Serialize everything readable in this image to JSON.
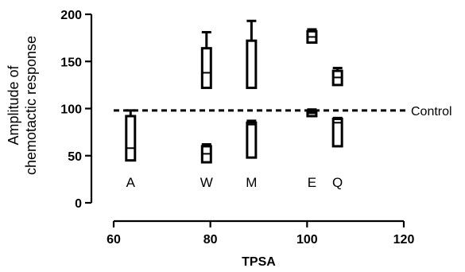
{
  "chart_data": {
    "type": "box",
    "xlabel": "TPSA",
    "ylabel_lines": [
      "Amplitude of",
      "chemotactic response"
    ],
    "xlim": [
      60,
      120
    ],
    "ylim": [
      0,
      200
    ],
    "xticks": [
      60,
      80,
      100,
      120
    ],
    "yticks": [
      0,
      50,
      100,
      150,
      200
    ],
    "reference_line": {
      "y": 98,
      "label": "Control",
      "style": "dashed"
    },
    "groups": [
      {
        "label": "A",
        "x": 63.5,
        "boxes": [
          {
            "whisker_low": 45,
            "q1": 45,
            "median": 58,
            "q3": 92,
            "whisker_high": 98
          }
        ]
      },
      {
        "label": "W",
        "x": 79.2,
        "boxes": [
          {
            "whisker_low": 43,
            "q1": 43,
            "median": 52,
            "q3": 60,
            "whisker_high": 62
          },
          {
            "whisker_low": 122,
            "q1": 122,
            "median": 138,
            "q3": 164,
            "whisker_high": 181
          }
        ]
      },
      {
        "label": "M",
        "x": 88.5,
        "boxes": [
          {
            "whisker_low": 48,
            "q1": 48,
            "median": 83,
            "q3": 85,
            "whisker_high": 87
          },
          {
            "whisker_low": 122,
            "q1": 122,
            "median": 122,
            "q3": 172,
            "whisker_high": 193
          }
        ]
      },
      {
        "label": "E",
        "x": 101,
        "boxes": [
          {
            "whisker_low": 92,
            "q1": 92,
            "median": 95,
            "q3": 97,
            "whisker_high": 99
          },
          {
            "whisker_low": 170,
            "q1": 170,
            "median": 176,
            "q3": 182,
            "whisker_high": 184
          }
        ]
      },
      {
        "label": "Q",
        "x": 106.3,
        "boxes": [
          {
            "whisker_low": 60,
            "q1": 60,
            "median": 85,
            "q3": 89,
            "whisker_high": 90
          },
          {
            "whisker_low": 125,
            "q1": 125,
            "median": 133,
            "q3": 140,
            "whisker_high": 143
          }
        ]
      }
    ]
  }
}
